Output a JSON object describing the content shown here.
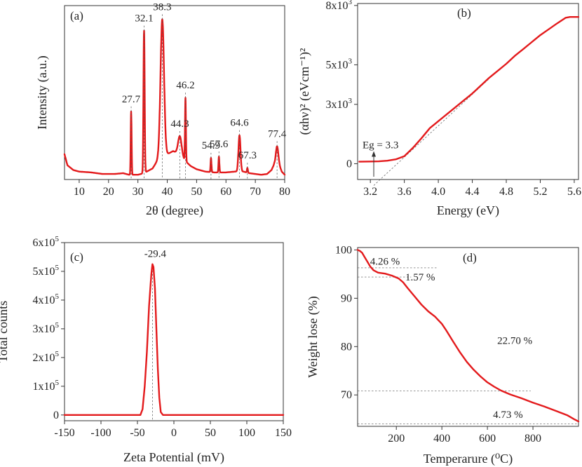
{
  "chart_data": [
    {
      "panel": "a",
      "panel_label": "(a)",
      "type": "line",
      "xlabel": "2θ (degree)",
      "ylabel": "Intensity (a.u.)",
      "xlim": [
        5,
        80
      ],
      "ylim": [
        0,
        110
      ],
      "x_ticks": [
        10,
        20,
        30,
        40,
        50,
        60,
        70,
        80
      ],
      "y_ticks": [],
      "grid": false,
      "color": "#e31a1c",
      "baseline": [
        [
          5,
          16
        ],
        [
          6,
          9
        ],
        [
          8,
          6
        ],
        [
          10,
          5
        ],
        [
          14,
          4.5
        ],
        [
          18,
          3.5
        ],
        [
          22,
          3.5
        ],
        [
          25,
          4
        ],
        [
          27,
          3
        ],
        [
          30,
          3
        ],
        [
          32,
          4
        ],
        [
          35,
          7
        ],
        [
          37,
          13
        ],
        [
          40,
          16
        ],
        [
          42,
          18
        ],
        [
          44,
          16
        ],
        [
          46,
          12
        ],
        [
          48,
          8.5
        ],
        [
          50,
          6.5
        ],
        [
          53,
          5
        ],
        [
          56,
          4.5
        ],
        [
          60,
          4.5
        ],
        [
          63,
          5
        ],
        [
          66,
          5
        ],
        [
          68,
          4
        ],
        [
          70,
          3.5
        ],
        [
          72,
          3
        ],
        [
          74,
          3.5
        ],
        [
          75.5,
          6
        ],
        [
          76.5,
          10
        ],
        [
          78,
          10
        ],
        [
          79,
          5
        ],
        [
          80,
          3
        ]
      ],
      "peaks": [
        {
          "x": 27.7,
          "height": 40,
          "width": 0.15,
          "label": "27.7"
        },
        {
          "x": 32.1,
          "height": 90,
          "width": 0.2,
          "label": "32.1"
        },
        {
          "x": 38.3,
          "height": 87,
          "width": 0.6,
          "label": "38.3"
        },
        {
          "x": 44.3,
          "height": 12,
          "width": 0.6,
          "label": "44.3"
        },
        {
          "x": 46.2,
          "height": 40,
          "width": 0.15,
          "label": "46.2"
        },
        {
          "x": 54.9,
          "height": 9,
          "width": 0.15,
          "label": "54.9"
        },
        {
          "x": 57.6,
          "height": 10,
          "width": 0.15,
          "label": "57.6"
        },
        {
          "x": 64.6,
          "height": 23,
          "width": 0.35,
          "label": "64.6"
        },
        {
          "x": 67.3,
          "height": 3,
          "width": 0.15,
          "label": "67.3"
        },
        {
          "x": 77.4,
          "height": 11,
          "width": 0.4,
          "label": "77.4"
        }
      ]
    },
    {
      "panel": "b",
      "panel_label": "(b)",
      "type": "line",
      "xlabel": "Energy (eV)",
      "ylabel": "(αhν)² (eVcm⁻¹)²",
      "xlim": [
        3.05,
        5.65
      ],
      "ylim": [
        -800,
        8100
      ],
      "x_ticks": [
        3.2,
        3.6,
        4.0,
        4.4,
        4.8,
        5.2,
        5.6
      ],
      "y_ticks": [
        0,
        3000,
        5000,
        8000
      ],
      "y_tick_labels": [
        {
          "value": 0,
          "mantissa": "0",
          "exponent": ""
        },
        {
          "value": 3000,
          "mantissa": "3x10",
          "exponent": "3"
        },
        {
          "value": 5000,
          "mantissa": "5x10",
          "exponent": "3"
        },
        {
          "value": 8000,
          "mantissa": "8x10",
          "exponent": "3"
        }
      ],
      "grid": false,
      "color": "#e31a1c",
      "points": [
        [
          3.07,
          100
        ],
        [
          3.2,
          110
        ],
        [
          3.3,
          120
        ],
        [
          3.4,
          150
        ],
        [
          3.5,
          220
        ],
        [
          3.6,
          380
        ],
        [
          3.7,
          800
        ],
        [
          3.8,
          1280
        ],
        [
          3.9,
          1800
        ],
        [
          4.0,
          2150
        ],
        [
          4.1,
          2500
        ],
        [
          4.2,
          2850
        ],
        [
          4.3,
          3200
        ],
        [
          4.4,
          3550
        ],
        [
          4.5,
          3950
        ],
        [
          4.6,
          4350
        ],
        [
          4.7,
          4700
        ],
        [
          4.8,
          5050
        ],
        [
          4.9,
          5450
        ],
        [
          5.0,
          5800
        ],
        [
          5.1,
          6150
        ],
        [
          5.2,
          6500
        ],
        [
          5.3,
          6800
        ],
        [
          5.4,
          7100
        ],
        [
          5.5,
          7380
        ],
        [
          5.55,
          7420
        ],
        [
          5.65,
          7420
        ]
      ],
      "annotation": {
        "text": "Eg = 3.3",
        "x": 3.24
      },
      "tangent": [
        [
          3.24,
          -1100
        ],
        [
          4.6,
          4300
        ]
      ]
    },
    {
      "panel": "c",
      "panel_label": "(c)",
      "type": "line",
      "xlabel": "Zeta Potential (mV)",
      "ylabel": "Total counts",
      "xlim": [
        -150,
        150
      ],
      "ylim": [
        -20000,
        600000
      ],
      "x_ticks": [
        -150,
        -100,
        -50,
        0,
        50,
        100,
        150
      ],
      "y_ticks": [
        0,
        100000,
        200000,
        300000,
        400000,
        500000,
        600000
      ],
      "y_tick_labels": [
        {
          "value": 0,
          "mantissa": "0",
          "exponent": ""
        },
        {
          "value": 100000,
          "mantissa": "1x10",
          "exponent": "5"
        },
        {
          "value": 200000,
          "mantissa": "2x10",
          "exponent": "5"
        },
        {
          "value": 300000,
          "mantissa": "3x10",
          "exponent": "5"
        },
        {
          "value": 400000,
          "mantissa": "4x10",
          "exponent": "5"
        },
        {
          "value": 500000,
          "mantissa": "5x10",
          "exponent": "5"
        },
        {
          "value": 600000,
          "mantissa": "6x10",
          "exponent": "5"
        }
      ],
      "grid": false,
      "color": "#e31a1c",
      "points": [
        [
          -150,
          0
        ],
        [
          -46,
          0
        ],
        [
          -43,
          20000
        ],
        [
          -40,
          100000
        ],
        [
          -37,
          220000
        ],
        [
          -34,
          380000
        ],
        [
          -31,
          490000
        ],
        [
          -29.4,
          525000
        ],
        [
          -28,
          515000
        ],
        [
          -26,
          440000
        ],
        [
          -24,
          300000
        ],
        [
          -22,
          160000
        ],
        [
          -20,
          60000
        ],
        [
          -18,
          10000
        ],
        [
          -15,
          0
        ],
        [
          150,
          0
        ]
      ],
      "peak_label": {
        "text": "-29.4",
        "x": -29.4,
        "y": 525000
      }
    },
    {
      "panel": "d",
      "panel_label": "(d)",
      "type": "line",
      "xlabel": "Temperarure (⁰C)",
      "ylabel": "Weight lose (%)",
      "xlim": [
        30,
        1000
      ],
      "ylim": [
        63.5,
        100.5
      ],
      "x_ticks": [
        200,
        400,
        600,
        800
      ],
      "y_ticks": [
        70,
        80,
        90,
        100
      ],
      "grid": false,
      "color": "#e31a1c",
      "points": [
        [
          30,
          100
        ],
        [
          40,
          99.8
        ],
        [
          50,
          99.4
        ],
        [
          60,
          98.6
        ],
        [
          70,
          97.8
        ],
        [
          85,
          96.6
        ],
        [
          100,
          95.8
        ],
        [
          120,
          95.3
        ],
        [
          150,
          95.1
        ],
        [
          180,
          94.7
        ],
        [
          210,
          94.1
        ],
        [
          230,
          93.3
        ],
        [
          250,
          92.1
        ],
        [
          280,
          90.4
        ],
        [
          310,
          88.7
        ],
        [
          340,
          87.3
        ],
        [
          370,
          86.2
        ],
        [
          400,
          84.7
        ],
        [
          420,
          83.3
        ],
        [
          450,
          81.0
        ],
        [
          480,
          78.8
        ],
        [
          510,
          76.8
        ],
        [
          540,
          75.2
        ],
        [
          570,
          73.8
        ],
        [
          600,
          72.6
        ],
        [
          630,
          71.7
        ],
        [
          660,
          70.9
        ],
        [
          700,
          70.1
        ],
        [
          750,
          69.3
        ],
        [
          800,
          68.4
        ],
        [
          850,
          67.6
        ],
        [
          900,
          66.7
        ],
        [
          950,
          65.8
        ],
        [
          980,
          65.0
        ],
        [
          1000,
          64.5
        ]
      ],
      "guides": [
        {
          "x0": 30,
          "x1": 380,
          "y": 96.3
        },
        {
          "x0": 30,
          "x1": 265,
          "y": 94.4
        },
        {
          "x0": 30,
          "x1": 790,
          "y": 70.8
        },
        {
          "x0": 30,
          "x1": 1000,
          "y": 64.0
        }
      ],
      "annotations": [
        {
          "text": "4.26 %",
          "x": 150,
          "y": 97.7
        },
        {
          "text": "1.57 %",
          "x": 305,
          "y": 94.4
        },
        {
          "text": "22.70 %",
          "x": 720,
          "y": 81.3
        },
        {
          "text": "4.73 %",
          "x": 690,
          "y": 66.0
        }
      ]
    }
  ]
}
